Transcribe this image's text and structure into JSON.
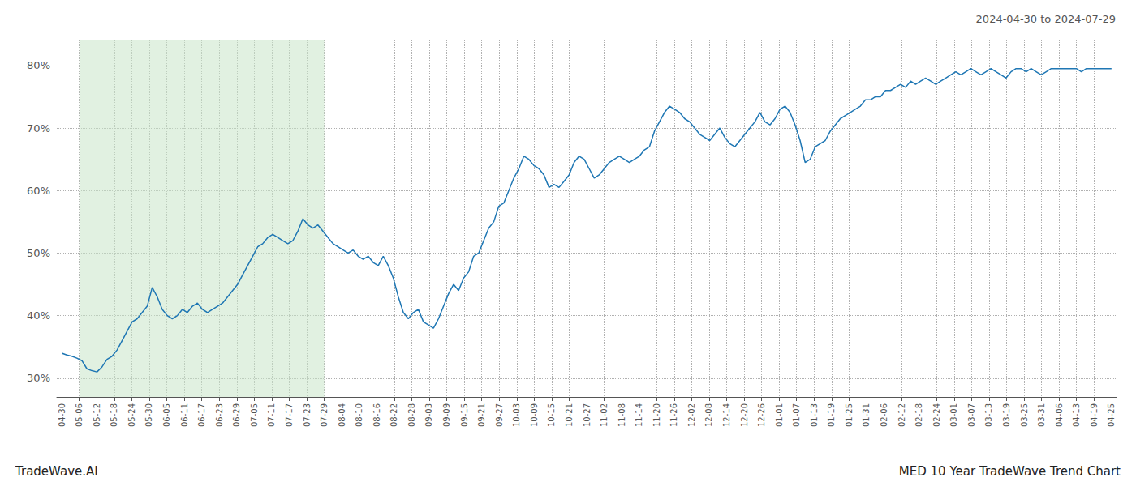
{
  "chart_data": {
    "type": "line",
    "title": "2024-04-30 to 2024-07-29",
    "annotations": [
      "TradeWave.AI",
      "MED 10 Year TradeWave Trend Chart"
    ],
    "color": "#1f77b4",
    "grid": true,
    "xlim": [
      -1,
      210
    ],
    "ylim": [
      27,
      84
    ],
    "yticks": [
      {
        "value": 30,
        "label": "30%"
      },
      {
        "value": 40,
        "label": "40%"
      },
      {
        "value": 50,
        "label": "50%"
      },
      {
        "value": 60,
        "label": "60%"
      },
      {
        "value": 70,
        "label": "70%"
      },
      {
        "value": 80,
        "label": "80%"
      }
    ],
    "xticks": [
      {
        "value": 0,
        "label": "04-30"
      },
      {
        "value": 3.4833333333333334,
        "label": "05-06"
      },
      {
        "value": 6.966666666666667,
        "label": "05-12"
      },
      {
        "value": 10.45,
        "label": "05-18"
      },
      {
        "value": 13.933333333333334,
        "label": "05-24"
      },
      {
        "value": 17.416666666666668,
        "label": "05-30"
      },
      {
        "value": 20.9,
        "label": "06-05"
      },
      {
        "value": 24.383333333333333,
        "label": "06-11"
      },
      {
        "value": 27.866666666666667,
        "label": "06-17"
      },
      {
        "value": 31.35,
        "label": "06-23"
      },
      {
        "value": 34.833333333333336,
        "label": "06-29"
      },
      {
        "value": 38.31666666666667,
        "label": "07-05"
      },
      {
        "value": 41.8,
        "label": "07-11"
      },
      {
        "value": 45.28333333333333,
        "label": "07-17"
      },
      {
        "value": 48.766666666666666,
        "label": "07-23"
      },
      {
        "value": 52.25,
        "label": "07-29"
      },
      {
        "value": 55.733333333333334,
        "label": "08-04"
      },
      {
        "value": 59.21666666666667,
        "label": "08-10"
      },
      {
        "value": 62.7,
        "label": "08-16"
      },
      {
        "value": 66.18333333333334,
        "label": "08-22"
      },
      {
        "value": 69.66666666666667,
        "label": "08-28"
      },
      {
        "value": 73.15,
        "label": "09-03"
      },
      {
        "value": 76.63333333333334,
        "label": "09-09"
      },
      {
        "value": 80.11666666666667,
        "label": "09-15"
      },
      {
        "value": 83.6,
        "label": "09-21"
      },
      {
        "value": 87.08333333333334,
        "label": "09-27"
      },
      {
        "value": 90.56666666666666,
        "label": "10-03"
      },
      {
        "value": 94.05,
        "label": "10-09"
      },
      {
        "value": 97.53333333333333,
        "label": "10-15"
      },
      {
        "value": 101.01666666666667,
        "label": "10-21"
      },
      {
        "value": 104.5,
        "label": "10-27"
      },
      {
        "value": 107.98333333333333,
        "label": "11-02"
      },
      {
        "value": 111.46666666666667,
        "label": "11-08"
      },
      {
        "value": 114.95,
        "label": "11-14"
      },
      {
        "value": 118.43333333333334,
        "label": "11-20"
      },
      {
        "value": 121.91666666666667,
        "label": "11-26"
      },
      {
        "value": 125.4,
        "label": "12-02"
      },
      {
        "value": 128.88333333333333,
        "label": "12-08"
      },
      {
        "value": 132.36666666666667,
        "label": "12-14"
      },
      {
        "value": 135.85,
        "label": "12-20"
      },
      {
        "value": 139.33333333333334,
        "label": "12-26"
      },
      {
        "value": 142.81666666666666,
        "label": "01-01"
      },
      {
        "value": 146.3,
        "label": "01-07"
      },
      {
        "value": 149.78333333333333,
        "label": "01-13"
      },
      {
        "value": 153.26666666666668,
        "label": "01-19"
      },
      {
        "value": 156.75,
        "label": "01-25"
      },
      {
        "value": 160.23333333333335,
        "label": "01-31"
      },
      {
        "value": 163.71666666666667,
        "label": "02-06"
      },
      {
        "value": 167.2,
        "label": "02-12"
      },
      {
        "value": 170.68333333333334,
        "label": "02-18"
      },
      {
        "value": 174.16666666666666,
        "label": "02-24"
      },
      {
        "value": 177.65,
        "label": "03-01"
      },
      {
        "value": 181.13333333333333,
        "label": "03-07"
      },
      {
        "value": 184.61666666666667,
        "label": "03-13"
      },
      {
        "value": 188.1,
        "label": "03-19"
      },
      {
        "value": 191.58333333333334,
        "label": "03-25"
      },
      {
        "value": 195.06666666666666,
        "label": "03-31"
      },
      {
        "value": 198.55,
        "label": "04-06"
      },
      {
        "value": 202.03333333333333,
        "label": "04-13"
      },
      {
        "value": 205.51666666666668,
        "label": "04-19"
      },
      {
        "value": 209,
        "label": "04-25"
      }
    ],
    "span": {
      "x": [
        3.4833333333333334,
        52.25
      ],
      "color": "#c8e6c8"
    },
    "x": [
      0,
      1,
      2,
      3,
      4,
      5,
      6,
      7,
      8,
      9,
      10,
      11,
      12,
      13,
      14,
      15,
      16,
      17,
      18,
      19,
      20,
      21,
      22,
      23,
      24,
      25,
      26,
      27,
      28,
      29,
      30,
      31,
      32,
      33,
      34,
      35,
      36,
      37,
      38,
      39,
      40,
      41,
      42,
      43,
      44,
      45,
      46,
      47,
      48,
      49,
      50,
      51,
      52,
      53,
      54,
      55,
      56,
      57,
      58,
      59,
      60,
      61,
      62,
      63,
      64,
      65,
      66,
      67,
      68,
      69,
      70,
      71,
      72,
      73,
      74,
      75,
      76,
      77,
      78,
      79,
      80,
      81,
      82,
      83,
      84,
      85,
      86,
      87,
      88,
      89,
      90,
      91,
      92,
      93,
      94,
      95,
      96,
      97,
      98,
      99,
      100,
      101,
      102,
      103,
      104,
      105,
      106,
      107,
      108,
      109,
      110,
      111,
      112,
      113,
      114,
      115,
      116,
      117,
      118,
      119,
      120,
      121,
      122,
      123,
      124,
      125,
      126,
      127,
      128,
      129,
      130,
      131,
      132,
      133,
      134,
      135,
      136,
      137,
      138,
      139,
      140,
      141,
      142,
      143,
      144,
      145,
      146,
      147,
      148,
      149,
      150,
      151,
      152,
      153,
      154,
      155,
      156,
      157,
      158,
      159,
      160,
      161,
      162,
      163,
      164,
      165,
      166,
      167,
      168,
      169,
      170,
      171,
      172,
      173,
      174,
      175,
      176,
      177,
      178,
      179,
      180,
      181,
      182,
      183,
      184,
      185,
      186,
      187,
      188,
      189,
      190,
      191,
      192,
      193,
      194,
      195,
      196,
      197,
      198,
      199,
      200,
      201,
      202,
      203,
      204,
      205,
      206,
      207,
      208,
      209
    ],
    "values": [
      34.0,
      33.7,
      33.5,
      33.2,
      32.8,
      31.5,
      31.2,
      31.0,
      31.8,
      33.0,
      33.5,
      34.5,
      36.0,
      37.5,
      39.0,
      39.5,
      40.5,
      41.5,
      44.5,
      43.0,
      41.0,
      40.0,
      39.5,
      40.0,
      41.0,
      40.5,
      41.5,
      42.0,
      41.0,
      40.5,
      41.0,
      41.5,
      42.0,
      43.0,
      44.0,
      45.0,
      46.5,
      48.0,
      49.5,
      51.0,
      51.5,
      52.5,
      53.0,
      52.5,
      52.0,
      51.5,
      52.0,
      53.5,
      55.5,
      54.5,
      54.0,
      54.5,
      53.5,
      52.5,
      51.5,
      51.0,
      50.5,
      50.0,
      50.5,
      49.5,
      49.0,
      49.5,
      48.5,
      48.0,
      49.5,
      48.0,
      46.0,
      43.0,
      40.5,
      39.5,
      40.5,
      41.0,
      39.0,
      38.5,
      38.0,
      39.5,
      41.5,
      43.5,
      45.0,
      44.0,
      46.0,
      47.0,
      49.5,
      50.0,
      52.0,
      54.0,
      55.0,
      57.5,
      58.0,
      60.0,
      62.0,
      63.5,
      65.5,
      65.0,
      64.0,
      63.5,
      62.5,
      60.5,
      61.0,
      60.5,
      61.5,
      62.5,
      64.5,
      65.5,
      65.0,
      63.5,
      62.0,
      62.5,
      63.5,
      64.5,
      65.0,
      65.5,
      65.0,
      64.5,
      65.0,
      65.5,
      66.5,
      67.0,
      69.5,
      71.0,
      72.5,
      73.5,
      73.0,
      72.5,
      71.5,
      71.0,
      70.0,
      69.0,
      68.5,
      68.0,
      69.0,
      70.0,
      68.5,
      67.5,
      67.0,
      68.0,
      69.0,
      70.0,
      71.0,
      72.5,
      71.0,
      70.5,
      71.5,
      73.0,
      73.5,
      72.5,
      70.5,
      68.0,
      64.5,
      65.0,
      67.0,
      67.5,
      68.0,
      69.5,
      70.5,
      71.5,
      72.0,
      72.5,
      73.0,
      73.5,
      74.5,
      74.5,
      75.0,
      75.0,
      76.0,
      76.0,
      76.5,
      77.0,
      76.5,
      77.5,
      77.0,
      77.5,
      78.0,
      77.5,
      77.0,
      77.5,
      78.0,
      78.5,
      79.0,
      78.5,
      79.0,
      79.5,
      79.0,
      78.5,
      79.0,
      79.5,
      79.0,
      78.5,
      78.0,
      79.0,
      79.5,
      79.5,
      79.0,
      79.5,
      79.0,
      78.5,
      79.0,
      79.5,
      79.5,
      79.5,
      79.5,
      79.5,
      79.5,
      79.0,
      79.5,
      79.5,
      79.5,
      79.5,
      79.5,
      79.5
    ]
  }
}
